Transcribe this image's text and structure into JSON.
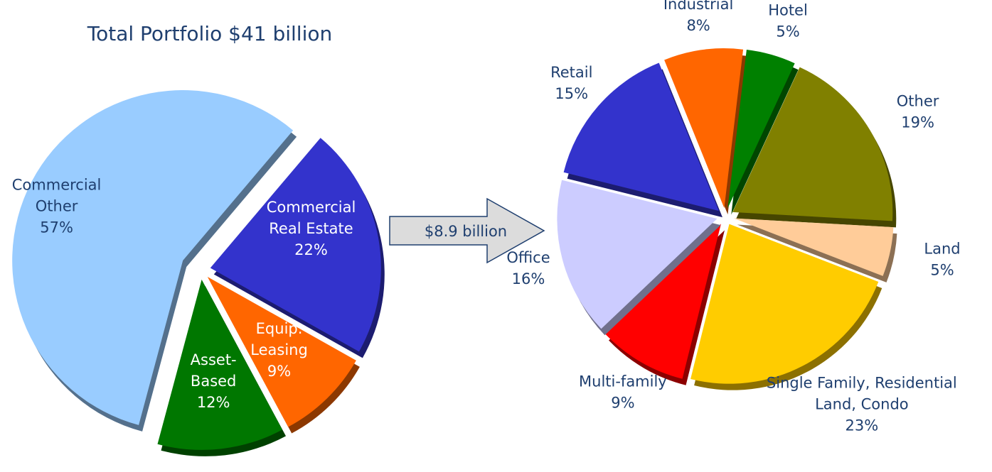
{
  "chart_data": [
    {
      "type": "pie",
      "title": "Total Portfolio $41 billion",
      "annotation": "$8.9 billion",
      "categories": [
        "Commercial Other",
        "Commercial Real Estate",
        "Equip. Leasing",
        "Asset-Based"
      ],
      "values": [
        57,
        22,
        9,
        12
      ],
      "value_labels": [
        "57%",
        "22%",
        "9%",
        "12%"
      ],
      "colors": [
        "#99ccff",
        "#3333cc",
        "#ff6600",
        "#007700"
      ]
    },
    {
      "type": "pie",
      "categories": [
        "Industrial",
        "Hotel",
        "Other",
        "Land",
        "Single Family, Residential Land, Condo",
        "Multi-family",
        "Office",
        "Retail"
      ],
      "values": [
        8,
        5,
        19,
        5,
        23,
        9,
        16,
        15
      ],
      "value_labels": [
        "8%",
        "5%",
        "19%",
        "5%",
        "23%",
        "9%",
        "16%",
        "15%"
      ],
      "colors": [
        "#ff6600",
        "#008000",
        "#808000",
        "#ffcc99",
        "#ffcc00",
        "#ff0000",
        "#ccccff",
        "#3333cc"
      ]
    }
  ]
}
